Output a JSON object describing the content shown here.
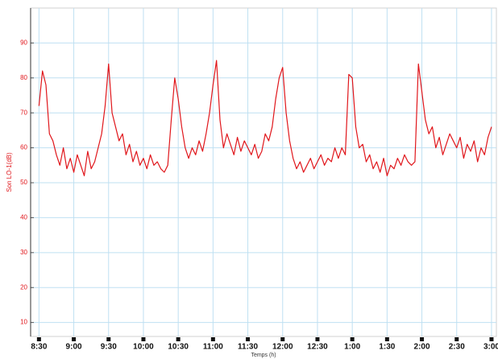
{
  "chart_data": {
    "type": "line",
    "y_label": "Son LO-1(dB)",
    "x_label": "Temps (h)",
    "color": "#e0161b",
    "grid": true,
    "xlim": [
      8.38,
      15.07
    ],
    "ylim": [
      6,
      100
    ],
    "yticks": [
      10,
      20,
      30,
      40,
      50,
      60,
      70,
      80,
      90
    ],
    "xticks": [
      {
        "value": 8.5,
        "label": "8:30"
      },
      {
        "value": 9,
        "label": "9:00"
      },
      {
        "value": 9.5,
        "label": "9:30"
      },
      {
        "value": 10,
        "label": "10:00"
      },
      {
        "value": 10.5,
        "label": "10:30"
      },
      {
        "value": 11,
        "label": "11:00"
      },
      {
        "value": 11.5,
        "label": "11:30"
      },
      {
        "value": 12,
        "label": "12:00"
      },
      {
        "value": 12.5,
        "label": "12:30"
      },
      {
        "value": 13,
        "label": "1:00"
      },
      {
        "value": 13.5,
        "label": "1:30"
      },
      {
        "value": 14,
        "label": "2:00"
      },
      {
        "value": 14.5,
        "label": "2:30"
      },
      {
        "value": 15,
        "label": "3:00"
      }
    ],
    "x": [
      8.5,
      8.55,
      8.6,
      8.65,
      8.7,
      8.75,
      8.8,
      8.85,
      8.9,
      8.95,
      9,
      9.05,
      9.1,
      9.15,
      9.2,
      9.25,
      9.3,
      9.35,
      9.4,
      9.45,
      9.5,
      9.55,
      9.6,
      9.65,
      9.7,
      9.75,
      9.8,
      9.85,
      9.9,
      9.95,
      10,
      10.05,
      10.1,
      10.15,
      10.2,
      10.25,
      10.3,
      10.35,
      10.4,
      10.45,
      10.5,
      10.55,
      10.6,
      10.65,
      10.7,
      10.75,
      10.8,
      10.85,
      10.9,
      10.95,
      11,
      11.05,
      11.1,
      11.15,
      11.2,
      11.25,
      11.3,
      11.35,
      11.4,
      11.45,
      11.5,
      11.55,
      11.6,
      11.65,
      11.7,
      11.75,
      11.8,
      11.85,
      11.9,
      11.95,
      12,
      12.05,
      12.1,
      12.15,
      12.2,
      12.25,
      12.3,
      12.35,
      12.4,
      12.45,
      12.5,
      12.55,
      12.6,
      12.65,
      12.7,
      12.75,
      12.8,
      12.85,
      12.9,
      12.95,
      13,
      13.05,
      13.1,
      13.15,
      13.2,
      13.25,
      13.3,
      13.35,
      13.4,
      13.45,
      13.5,
      13.55,
      13.6,
      13.65,
      13.7,
      13.75,
      13.8,
      13.85,
      13.9,
      13.95,
      14,
      14.05,
      14.1,
      14.15,
      14.2,
      14.25,
      14.3,
      14.35,
      14.4,
      14.45,
      14.5,
      14.55,
      14.6,
      14.65,
      14.7,
      14.75,
      14.8,
      14.85,
      14.9,
      14.95,
      15
    ],
    "values": [
      72,
      82,
      78,
      64,
      62,
      58,
      55,
      60,
      54,
      57,
      53,
      58,
      55,
      52,
      59,
      54,
      56,
      60,
      64,
      72,
      84,
      70,
      66,
      62,
      64,
      58,
      61,
      56,
      59,
      55,
      57,
      54,
      58,
      55,
      56,
      54,
      53,
      55,
      68,
      80,
      74,
      66,
      60,
      57,
      60,
      58,
      62,
      59,
      64,
      70,
      78,
      85,
      68,
      60,
      64,
      61,
      58,
      63,
      59,
      62,
      60,
      58,
      61,
      57,
      59,
      64,
      62,
      66,
      74,
      80,
      83,
      70,
      62,
      57,
      54,
      56,
      53,
      55,
      57,
      54,
      56,
      58,
      55,
      57,
      56,
      60,
      57,
      60,
      58,
      81,
      80,
      66,
      60,
      61,
      56,
      58,
      54,
      56,
      53,
      57,
      52,
      55,
      54,
      57,
      55,
      58,
      56,
      55,
      56,
      84,
      76,
      68,
      64,
      66,
      60,
      63,
      58,
      61,
      64,
      62,
      60,
      63,
      57,
      61,
      59,
      62,
      56,
      60,
      58,
      63,
      66
    ]
  }
}
